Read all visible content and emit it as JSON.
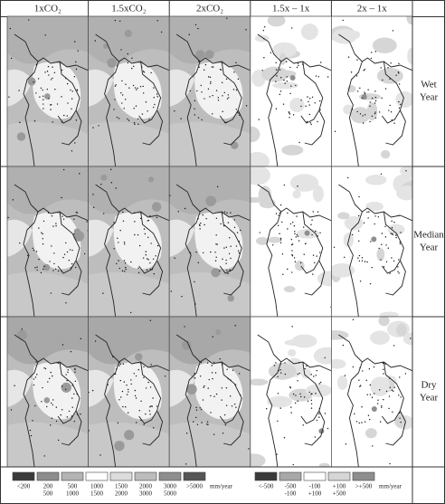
{
  "columns": [
    "1xCO₂",
    "1.5xCO₂",
    "2xCO₂",
    "1.5x – 1x",
    "2x – 1x"
  ],
  "rows": [
    {
      "lines": [
        "Wet",
        "Year"
      ]
    },
    {
      "lines": [
        "Median",
        "Year"
      ]
    },
    {
      "lines": [
        "Dry",
        "Year"
      ]
    }
  ],
  "legend_absolute": {
    "unit": "mm/year",
    "items": [
      {
        "lines": [
          "<200"
        ],
        "color": "#3a3a3a"
      },
      {
        "lines": [
          "200",
          "500"
        ],
        "color": "#8c8c8c"
      },
      {
        "lines": [
          "500",
          "1000"
        ],
        "color": "#b4b4b4"
      },
      {
        "lines": [
          "1000",
          "1500"
        ],
        "color": "#ffffff"
      },
      {
        "lines": [
          "1500",
          "2000"
        ],
        "color": "#dcdcdc"
      },
      {
        "lines": [
          "2000",
          "3000"
        ],
        "color": "#bcbcbc"
      },
      {
        "lines": [
          "3000",
          "5000"
        ],
        "color": "#8e8e8e"
      },
      {
        "lines": [
          ">5000"
        ],
        "color": "#555555"
      }
    ]
  },
  "legend_change": {
    "unit": "mm/year",
    "items": [
      {
        "lines": [
          "<-500"
        ],
        "color": "#3a3a3a"
      },
      {
        "lines": [
          "-500",
          "-100"
        ],
        "color": "#a8a8a8"
      },
      {
        "lines": [
          "-100",
          "+100"
        ],
        "color": "#ffffff"
      },
      {
        "lines": [
          "+100",
          "+500"
        ],
        "color": "#d6d6d6"
      },
      {
        "lines": [
          ">+500"
        ],
        "color": "#8e8e8e"
      }
    ]
  }
}
